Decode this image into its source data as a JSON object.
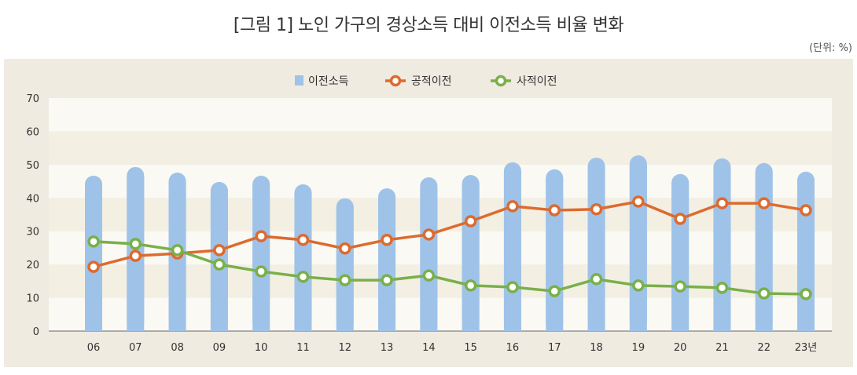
{
  "chart_data": {
    "type": "bar+line",
    "title": "[그림 1] 노인 가구의 경상소득 대비 이전소득 비율 변화",
    "unit": "(단위: %)",
    "categories": [
      "06",
      "07",
      "08",
      "09",
      "10",
      "11",
      "12",
      "13",
      "14",
      "15",
      "16",
      "17",
      "18",
      "19",
      "20",
      "21",
      "22",
      "23년"
    ],
    "ylim": [
      0,
      70
    ],
    "yticks": [
      0,
      10,
      20,
      30,
      40,
      50,
      60,
      70
    ],
    "legend_position": "top-center",
    "colors": {
      "bar": "#9fc3e8",
      "public": "#dc6b2f",
      "private": "#79b04a"
    },
    "series": [
      {
        "name": "이전소득",
        "type": "bar",
        "values": [
          46.7,
          49.3,
          47.6,
          44.8,
          46.7,
          44.1,
          39.9,
          42.9,
          46.2,
          46.9,
          50.7,
          48.6,
          52.1,
          52.8,
          47.2,
          51.9,
          50.5,
          47.9
        ]
      },
      {
        "name": "공적이전",
        "type": "line",
        "values": [
          19.3,
          22.6,
          23.3,
          24.3,
          28.5,
          27.4,
          24.8,
          27.4,
          29.0,
          33.0,
          37.5,
          36.3,
          36.6,
          38.9,
          33.7,
          38.4,
          38.4,
          36.3
        ]
      },
      {
        "name": "사적이전",
        "type": "line",
        "values": [
          26.9,
          26.2,
          24.3,
          20.0,
          17.9,
          16.3,
          15.3,
          15.3,
          16.7,
          13.7,
          13.2,
          12.0,
          15.6,
          13.7,
          13.4,
          13.0,
          11.3,
          11.1
        ]
      }
    ]
  }
}
